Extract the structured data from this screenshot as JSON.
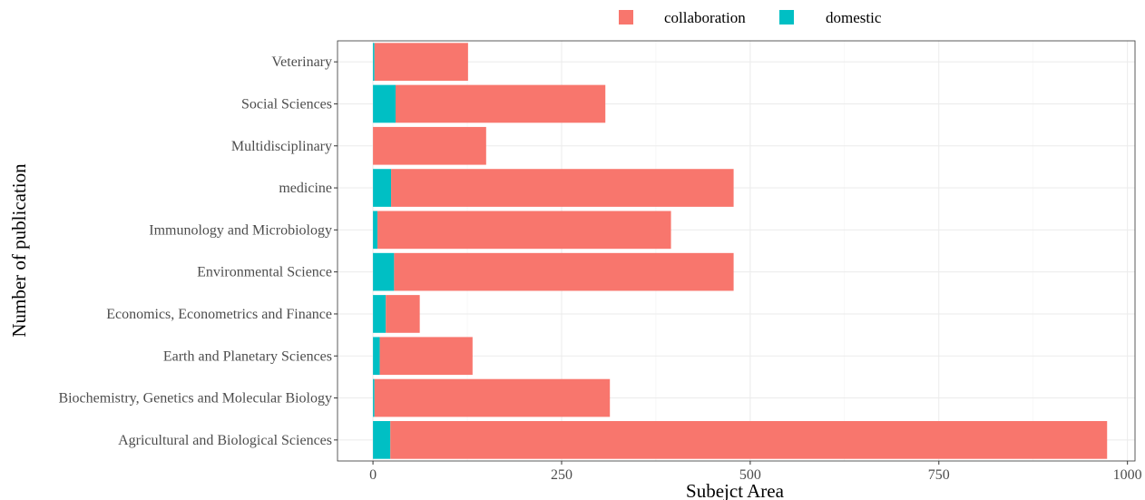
{
  "chart_data": {
    "type": "bar",
    "orientation": "horizontal",
    "stacked": true,
    "categories": [
      "Agricultural and Biological Sciences",
      "Biochemistry, Genetics and Molecular Biology",
      "Earth and Planetary Sciences",
      "Economics, Econometrics and Finance",
      "Environmental Science",
      "Immunology and Microbiology",
      "medicine",
      "Multidisciplinary",
      "Social Sciences",
      "Veterinary"
    ],
    "series": [
      {
        "name": "domestic",
        "color": "#00BFC4",
        "values": [
          23,
          2,
          9,
          17,
          28,
          6,
          24,
          0,
          30,
          2
        ]
      },
      {
        "name": "collaboration",
        "color": "#F8766D",
        "values": [
          950,
          312,
          123,
          45,
          450,
          389,
          454,
          150,
          278,
          124
        ]
      }
    ],
    "xlabel": "Subejct Area",
    "ylabel": "Number of publication",
    "xlim": [
      -47,
      1010
    ],
    "xticks": [
      "0",
      "250",
      "500",
      "750",
      "1000"
    ],
    "xtick_values": [
      0,
      250,
      500,
      750,
      1000
    ],
    "legend": {
      "position": "top",
      "order": [
        "collaboration",
        "domestic"
      ]
    },
    "grid": true
  }
}
